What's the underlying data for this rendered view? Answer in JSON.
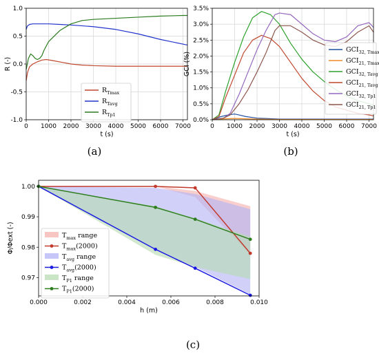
{
  "panels": [
    {
      "label": "(a)"
    },
    {
      "label": "(b)"
    },
    {
      "label": "(c)"
    }
  ],
  "chart_data": [
    {
      "type": "line",
      "panel": "(a)",
      "xlabel": "t (s)",
      "ylabel": "R (-)",
      "xlim": [
        0,
        7200
      ],
      "ylim": [
        -1.0,
        1.0
      ],
      "xticks": [
        0,
        1000,
        2000,
        3000,
        4000,
        5000,
        6000,
        7000
      ],
      "yticks": [
        -1.0,
        -0.5,
        0.0,
        0.5,
        1.0
      ],
      "grid": true,
      "legend_position": "bottom-left",
      "series": [
        {
          "name": "R",
          "sub": "Tmax",
          "color": "#c0462d",
          "x": [
            0,
            60,
            150,
            300,
            500,
            700,
            900,
            1200,
            1600,
            2000,
            2500,
            3000,
            4000,
            5000,
            6000,
            7200
          ],
          "y": [
            -0.3,
            -0.15,
            -0.05,
            0.0,
            0.04,
            0.07,
            0.08,
            0.06,
            0.03,
            0.0,
            -0.02,
            -0.03,
            -0.04,
            -0.04,
            -0.04,
            -0.04
          ]
        },
        {
          "name": "R",
          "sub": "Tavg",
          "color": "#2233cc",
          "x": [
            0,
            50,
            150,
            300,
            500,
            800,
            1000,
            1500,
            2000,
            3000,
            4000,
            5000,
            6000,
            7200
          ],
          "y": [
            0.62,
            0.68,
            0.71,
            0.72,
            0.72,
            0.72,
            0.72,
            0.71,
            0.7,
            0.67,
            0.62,
            0.54,
            0.44,
            0.34
          ]
        },
        {
          "name": "R",
          "sub": "Tp1",
          "color": "#2a7a1e",
          "x": [
            0,
            100,
            200,
            300,
            400,
            500,
            600,
            700,
            800,
            1000,
            1500,
            2000,
            2500,
            3000,
            4000,
            5000,
            6000,
            7000,
            7200
          ],
          "y": [
            -0.1,
            0.1,
            0.18,
            0.15,
            0.1,
            0.08,
            0.1,
            0.15,
            0.25,
            0.4,
            0.6,
            0.72,
            0.78,
            0.8,
            0.82,
            0.84,
            0.86,
            0.87,
            0.87
          ]
        }
      ]
    },
    {
      "type": "line",
      "panel": "(b)",
      "xlabel": "t (s)",
      "ylabel": "GCI (%)",
      "xlim": [
        0,
        7200
      ],
      "ylim": [
        0.0,
        3.5
      ],
      "xticks": [
        0,
        1000,
        2000,
        3000,
        4000,
        5000,
        6000,
        7000
      ],
      "yticks": [
        0.0,
        0.5,
        1.0,
        1.5,
        2.0,
        2.5,
        3.0,
        3.5
      ],
      "ytick_labels": [
        "0.0%",
        "0.5%",
        "1.0%",
        "1.5%",
        "2.0%",
        "2.5%",
        "3.0%",
        "3.5%"
      ],
      "grid": true,
      "legend_position": "right",
      "series": [
        {
          "name": "GCI",
          "sub": "32, Tmax",
          "color": "#1f4e9e",
          "x": [
            0,
            200,
            400,
            700,
            1000,
            1200,
            1500,
            2000,
            3000,
            4000,
            5000,
            6000,
            7000,
            7200
          ],
          "y": [
            0,
            0.05,
            0.1,
            0.15,
            0.18,
            0.15,
            0.1,
            0.05,
            0.02,
            0.02,
            0.02,
            0.02,
            0.02,
            0.02
          ]
        },
        {
          "name": "GCI",
          "sub": "21, Tmax",
          "color": "#f08a24",
          "x": [
            0,
            300,
            600,
            1000,
            1500,
            2000,
            3000,
            4000,
            5000,
            6000,
            7000,
            7200
          ],
          "y": [
            0,
            0.02,
            0.03,
            0.04,
            0.03,
            0.02,
            0.01,
            0.01,
            0.01,
            0.01,
            0.01,
            0.01
          ]
        },
        {
          "name": "GCI",
          "sub": "32, Tavg",
          "color": "#2ca02c",
          "x": [
            0,
            300,
            600,
            1000,
            1400,
            1800,
            2200,
            2600,
            3000,
            3500,
            4000,
            4500,
            5000,
            5500,
            6000,
            6500,
            7000,
            7200
          ],
          "y": [
            0,
            0.15,
            0.9,
            1.8,
            2.6,
            3.2,
            3.4,
            3.3,
            3.0,
            2.4,
            1.9,
            1.5,
            1.2,
            0.95,
            0.75,
            0.6,
            0.5,
            0.45
          ]
        },
        {
          "name": "GCI",
          "sub": "21, Tavg",
          "color": "#c0462d",
          "x": [
            0,
            300,
            600,
            1000,
            1400,
            1800,
            2200,
            2600,
            3000,
            3500,
            4000,
            4500,
            5000,
            5500,
            6000,
            6500,
            7000,
            7200
          ],
          "y": [
            0,
            0.1,
            0.7,
            1.4,
            2.1,
            2.5,
            2.65,
            2.55,
            2.3,
            1.8,
            1.3,
            0.9,
            0.6,
            0.4,
            0.3,
            0.2,
            0.15,
            0.12
          ]
        },
        {
          "name": "GCI",
          "sub": "32, Tp1",
          "color": "#9467bd",
          "x": [
            0,
            500,
            800,
            1200,
            1600,
            2000,
            2400,
            2800,
            3000,
            3500,
            4000,
            4500,
            5000,
            5500,
            6000,
            6500,
            7000,
            7200
          ],
          "y": [
            0,
            0.05,
            0.2,
            0.8,
            1.5,
            2.2,
            2.8,
            3.3,
            3.35,
            3.3,
            3.0,
            2.7,
            2.5,
            2.45,
            2.6,
            2.95,
            3.05,
            2.9
          ]
        },
        {
          "name": "GCI",
          "sub": "21, Tp1",
          "color": "#8c564b",
          "x": [
            0,
            500,
            800,
            1200,
            1600,
            2000,
            2400,
            2800,
            3000,
            3500,
            4000,
            4500,
            5000,
            5500,
            6000,
            6500,
            7000,
            7200
          ],
          "y": [
            0,
            0.05,
            0.15,
            0.5,
            0.95,
            1.5,
            2.1,
            2.8,
            2.95,
            2.95,
            2.75,
            2.5,
            2.35,
            2.3,
            2.45,
            2.75,
            2.95,
            2.75
          ]
        }
      ]
    },
    {
      "type": "line",
      "panel": "(c)",
      "xlabel": "h (m)",
      "ylabel": "Φ/Φext (-)",
      "xlim": [
        0.0,
        0.01
      ],
      "ylim": [
        0.964,
        1.002
      ],
      "xticks": [
        0.0,
        0.002,
        0.004,
        0.006,
        0.008,
        0.01
      ],
      "xtick_labels": [
        "0.000",
        "0.002",
        "0.004",
        "0.006",
        "0.008",
        "0.010"
      ],
      "yticks": [
        0.97,
        0.98,
        0.99,
        1.0
      ],
      "ytick_labels": [
        "0.97",
        "0.98",
        "0.99",
        "1.00"
      ],
      "grid": false,
      "legend_position": "bottom-left",
      "ranges": [
        {
          "name": "T",
          "sub": "max",
          "suffix": " range",
          "color": "#f4b2ae",
          "x": [
            0,
            0.0053,
            0.0071,
            0.0096
          ],
          "upper": [
            1.0,
            1.0,
            0.9985,
            0.9935
          ],
          "lower": [
            1.0,
            1.0,
            0.9965,
            0.9775
          ]
        },
        {
          "name": "T",
          "sub": "avg",
          "suffix": " range",
          "color": "#b3b3f5",
          "x": [
            0,
            0.0053,
            0.0071,
            0.0096
          ],
          "upper": [
            1.0,
            0.9995,
            0.9975,
            0.9925
          ],
          "lower": [
            1.0,
            0.9795,
            0.9735,
            0.9645
          ]
        },
        {
          "name": "T",
          "sub": "P1",
          "suffix": " range",
          "color": "#b7dcb3",
          "x": [
            0,
            0.0053,
            0.0071,
            0.0096
          ],
          "upper": [
            1.0,
            0.9935,
            0.9895,
            0.9835
          ],
          "lower": [
            1.0,
            0.9775,
            0.9735,
            0.9695
          ]
        }
      ],
      "series": [
        {
          "name": "T",
          "sub": "max",
          "suffix": "(2000)",
          "color": "#c0392b",
          "x": [
            0,
            0.0053,
            0.0071,
            0.0096
          ],
          "y": [
            1.0,
            1.0,
            0.9995,
            0.978
          ]
        },
        {
          "name": "T",
          "sub": "avg",
          "suffix": "(2000)",
          "color": "#1a1ae0",
          "x": [
            0,
            0.0053,
            0.0071,
            0.0096
          ],
          "y": [
            1.0,
            0.9793,
            0.9731,
            0.9642
          ]
        },
        {
          "name": "T",
          "sub": "P1",
          "suffix": "(2000)",
          "color": "#2e7d1f",
          "x": [
            0,
            0.0053,
            0.0071,
            0.0096
          ],
          "y": [
            1.0,
            0.9931,
            0.9892,
            0.9826
          ]
        }
      ]
    }
  ]
}
